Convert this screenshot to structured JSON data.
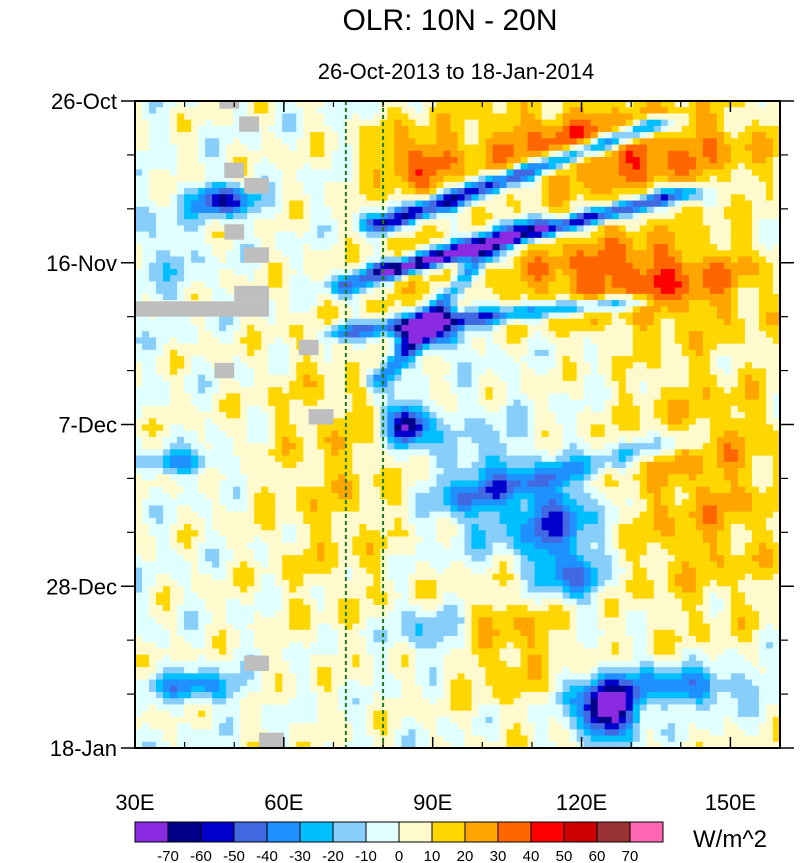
{
  "chart_data": {
    "type": "heatmap",
    "title": "OLR: 10N - 20N",
    "subtitle": "26-Oct-2013 to 18-Jan-2014",
    "xlabel": "",
    "ylabel": "",
    "x_range": [
      30,
      160
    ],
    "y_range_days": [
      0,
      84
    ],
    "x_ticks": [
      {
        "value": 30,
        "label": "30E"
      },
      {
        "value": 60,
        "label": "60E"
      },
      {
        "value": 90,
        "label": "90E"
      },
      {
        "value": 120,
        "label": "120E"
      },
      {
        "value": 150,
        "label": "150E"
      }
    ],
    "y_ticks": [
      {
        "value": 0,
        "label": "26-Oct"
      },
      {
        "value": 21,
        "label": "16-Nov"
      },
      {
        "value": 42,
        "label": "7-Dec"
      },
      {
        "value": 63,
        "label": "28-Dec"
      },
      {
        "value": 84,
        "label": "18-Jan"
      }
    ],
    "reference_lines_lon": [
      72.5,
      80
    ],
    "colorbar": {
      "units": "W/m^2",
      "levels": [
        -70,
        -60,
        -50,
        -40,
        -30,
        -20,
        -10,
        0,
        10,
        20,
        30,
        40,
        50,
        60,
        70
      ],
      "colors": [
        "#8a2be2",
        "#000088",
        "#0000cd",
        "#4169e1",
        "#1e90ff",
        "#00bfff",
        "#87cefa",
        "#e0ffff",
        "#fffacd",
        "#ffd700",
        "#ffa500",
        "#ff6600",
        "#ff0000",
        "#cc0000",
        "#993333",
        "#ff66b2"
      ],
      "missing_color": "#bebebe"
    },
    "anomaly_features": [
      {
        "lon": [
          95,
          155
        ],
        "day": [
          0,
          10
        ],
        "value": 30,
        "note": "positive anomaly band, northeast"
      },
      {
        "lon": [
          75,
          95
        ],
        "day": [
          4,
          12
        ],
        "value": 50,
        "note": "strong positive near 80E-90E"
      },
      {
        "lon": [
          100,
          160
        ],
        "day": [
          16,
          28
        ],
        "value": 35,
        "note": "positive anomaly 105E-160E"
      },
      {
        "lon": [
          40,
          60
        ],
        "day": [
          10,
          16
        ],
        "value": -55,
        "note": "negative streak 40E-55E"
      },
      {
        "lon": [
          85,
          130
        ],
        "day": [
          4,
          16
        ],
        "value": -60,
        "note": "northeastward negative streaks"
      },
      {
        "lon": [
          78,
          92
        ],
        "day": [
          26,
          34
        ],
        "value": -60,
        "note": "negative near 85E"
      },
      {
        "lon": [
          80,
          90
        ],
        "day": [
          39,
          45
        ],
        "value": -75,
        "note": "strong negative 82E-88E"
      },
      {
        "lon": [
          95,
          135
        ],
        "day": [
          46,
          64
        ],
        "value": -40,
        "note": "negative band 100E-130E"
      },
      {
        "lon": [
          115,
          140
        ],
        "day": [
          74,
          84
        ],
        "value": -70,
        "note": "strong negative near 125E"
      },
      {
        "lon": [
          30,
          70
        ],
        "day": [
          35,
          84
        ],
        "value": 5,
        "note": "weak anomalies western domain"
      }
    ]
  }
}
